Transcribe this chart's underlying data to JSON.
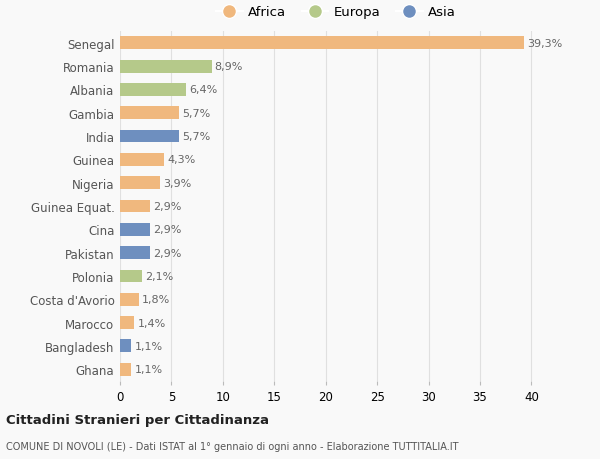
{
  "categories": [
    "Senegal",
    "Romania",
    "Albania",
    "Gambia",
    "India",
    "Guinea",
    "Nigeria",
    "Guinea Equat.",
    "Cina",
    "Pakistan",
    "Polonia",
    "Costa d'Avorio",
    "Marocco",
    "Bangladesh",
    "Ghana"
  ],
  "values": [
    39.3,
    8.9,
    6.4,
    5.7,
    5.7,
    4.3,
    3.9,
    2.9,
    2.9,
    2.9,
    2.1,
    1.8,
    1.4,
    1.1,
    1.1
  ],
  "labels": [
    "39,3%",
    "8,9%",
    "6,4%",
    "5,7%",
    "5,7%",
    "4,3%",
    "3,9%",
    "2,9%",
    "2,9%",
    "2,9%",
    "2,1%",
    "1,8%",
    "1,4%",
    "1,1%",
    "1,1%"
  ],
  "colors": [
    "#f0b87e",
    "#b5c98a",
    "#b5c98a",
    "#f0b87e",
    "#6e8fbf",
    "#f0b87e",
    "#f0b87e",
    "#f0b87e",
    "#6e8fbf",
    "#6e8fbf",
    "#b5c98a",
    "#f0b87e",
    "#f0b87e",
    "#6e8fbf",
    "#f0b87e"
  ],
  "legend": [
    {
      "label": "Africa",
      "color": "#f0b87e"
    },
    {
      "label": "Europa",
      "color": "#b5c98a"
    },
    {
      "label": "Asia",
      "color": "#6e8fbf"
    }
  ],
  "xlim": [
    0,
    42
  ],
  "xticks": [
    0,
    5,
    10,
    15,
    20,
    25,
    30,
    35,
    40
  ],
  "title": "Cittadini Stranieri per Cittadinanza",
  "subtitle": "COMUNE DI NOVOLI (LE) - Dati ISTAT al 1° gennaio di ogni anno - Elaborazione TUTTITALIA.IT",
  "bg_color": "#f9f9f9",
  "grid_color": "#e0e0e0",
  "bar_height": 0.55,
  "label_fontsize": 8.0,
  "ytick_fontsize": 8.5,
  "xtick_fontsize": 8.5
}
